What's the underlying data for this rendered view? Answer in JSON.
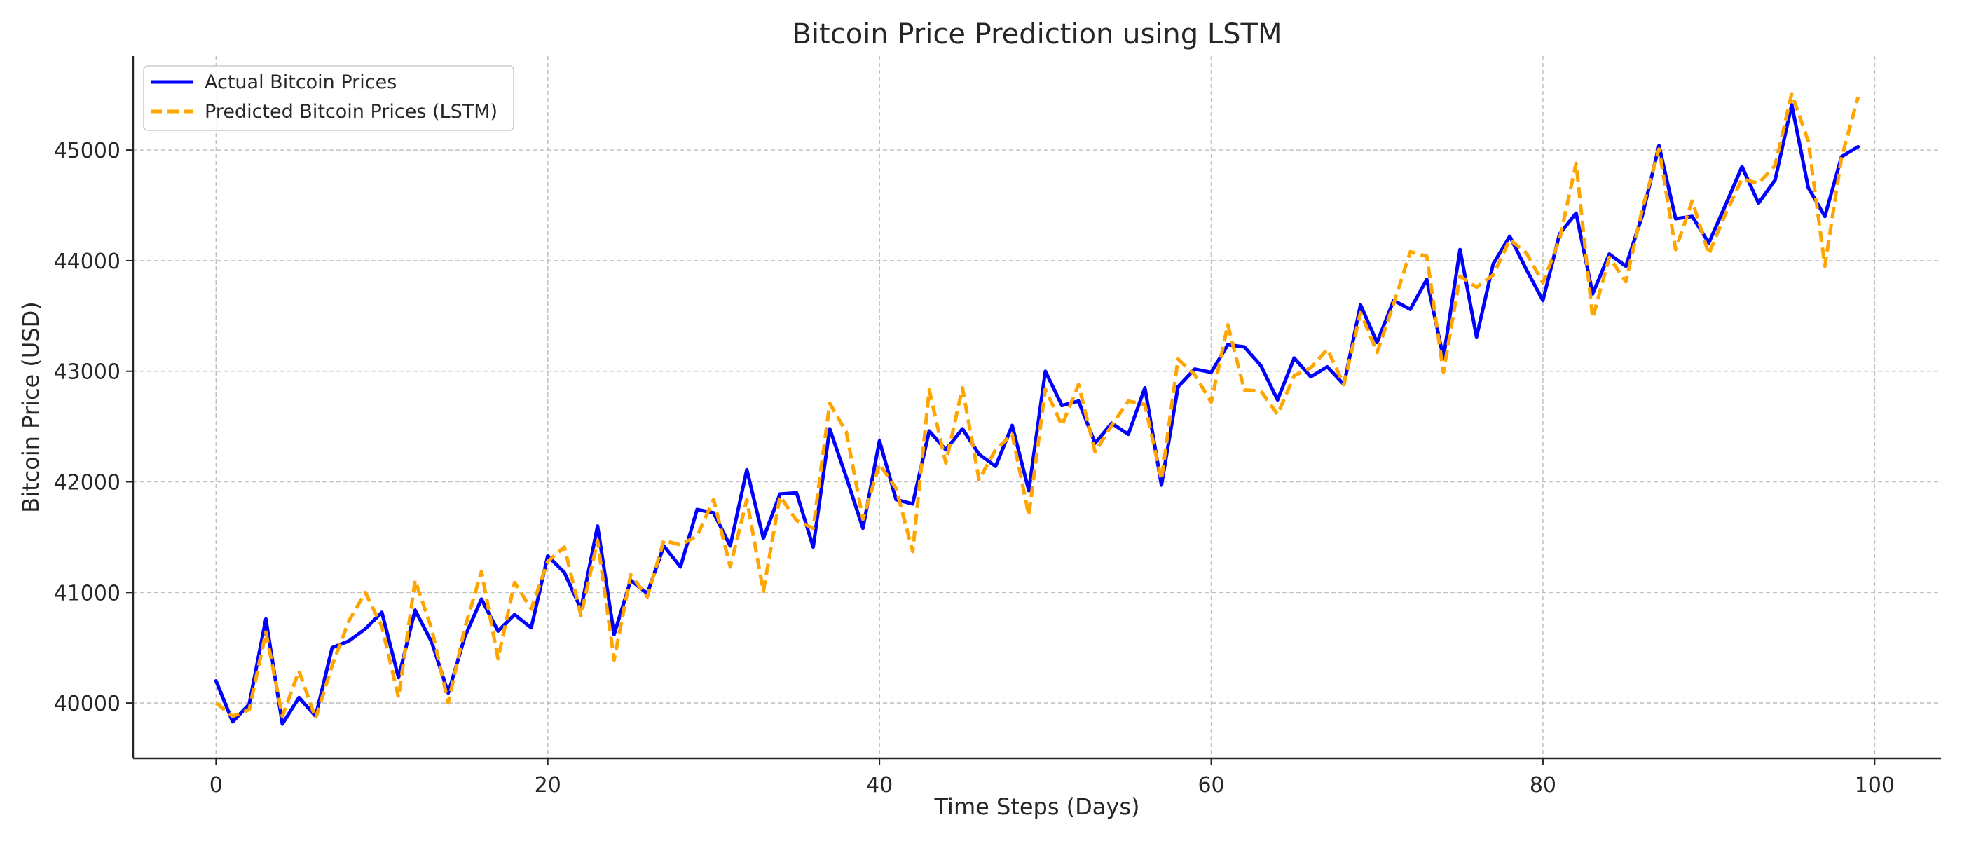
{
  "chart_data": {
    "type": "line",
    "title": "Bitcoin Price Prediction using LSTM",
    "xlabel": "Time Steps (Days)",
    "ylabel": "Bitcoin Price (USD)",
    "xlim": [
      -5,
      104
    ],
    "ylim": [
      39500,
      45850
    ],
    "xticks": [
      0,
      20,
      40,
      60,
      80,
      100
    ],
    "yticks": [
      40000,
      41000,
      42000,
      43000,
      44000,
      45000
    ],
    "grid": true,
    "legend_position": "top-left",
    "series": [
      {
        "name": "Actual Bitcoin Prices",
        "color": "#0000ff",
        "style": "solid",
        "values": [
          40200,
          39830,
          39990,
          40760,
          39810,
          40050,
          39880,
          40500,
          40560,
          40670,
          40820,
          40230,
          40840,
          40550,
          40090,
          40600,
          40940,
          40650,
          40800,
          40680,
          41330,
          41180,
          40850,
          41600,
          40620,
          41110,
          40990,
          41420,
          41230,
          41750,
          41720,
          41420,
          42110,
          41490,
          41890,
          41900,
          41410,
          42480,
          42040,
          41580,
          42370,
          41840,
          41800,
          42460,
          42290,
          42480,
          42250,
          42140,
          42510,
          41920,
          43000,
          42690,
          42730,
          42350,
          42530,
          42430,
          42850,
          41970,
          42860,
          43020,
          42990,
          43240,
          43220,
          43050,
          42740,
          43120,
          42950,
          43040,
          42880,
          43600,
          43260,
          43640,
          43560,
          43830,
          43120,
          44100,
          43310,
          43970,
          44220,
          43920,
          43640,
          44240,
          44430,
          43700,
          44060,
          43950,
          44410,
          45040,
          44380,
          44400,
          44160,
          44500,
          44850,
          44520,
          44730,
          45410,
          44660,
          44400,
          44940,
          45030
        ]
      },
      {
        "name": "Predicted Bitcoin Prices (LSTM)",
        "color": "#ffa500",
        "style": "dashed",
        "values": [
          40000,
          39880,
          39940,
          40640,
          39880,
          40290,
          39860,
          40340,
          40740,
          41000,
          40690,
          40050,
          41110,
          40670,
          40000,
          40680,
          41190,
          40400,
          41090,
          40850,
          41280,
          41410,
          40790,
          41470,
          40390,
          41160,
          40960,
          41470,
          41430,
          41510,
          41840,
          41230,
          41840,
          41010,
          41870,
          41650,
          41580,
          42710,
          42450,
          41660,
          42160,
          41940,
          41370,
          42830,
          42170,
          42850,
          42020,
          42290,
          42430,
          41700,
          42840,
          42510,
          42880,
          42270,
          42510,
          42730,
          42700,
          42020,
          43110,
          42970,
          42720,
          43420,
          42830,
          42820,
          42610,
          42960,
          43030,
          43200,
          42880,
          43530,
          43170,
          43610,
          44080,
          44040,
          42990,
          43860,
          43760,
          43870,
          44190,
          44070,
          43800,
          44190,
          44880,
          43480,
          44030,
          43810,
          44470,
          45010,
          44100,
          44540,
          44060,
          44420,
          44740,
          44700,
          44860,
          45510,
          45080,
          43950,
          44930,
          45480
        ]
      }
    ]
  }
}
